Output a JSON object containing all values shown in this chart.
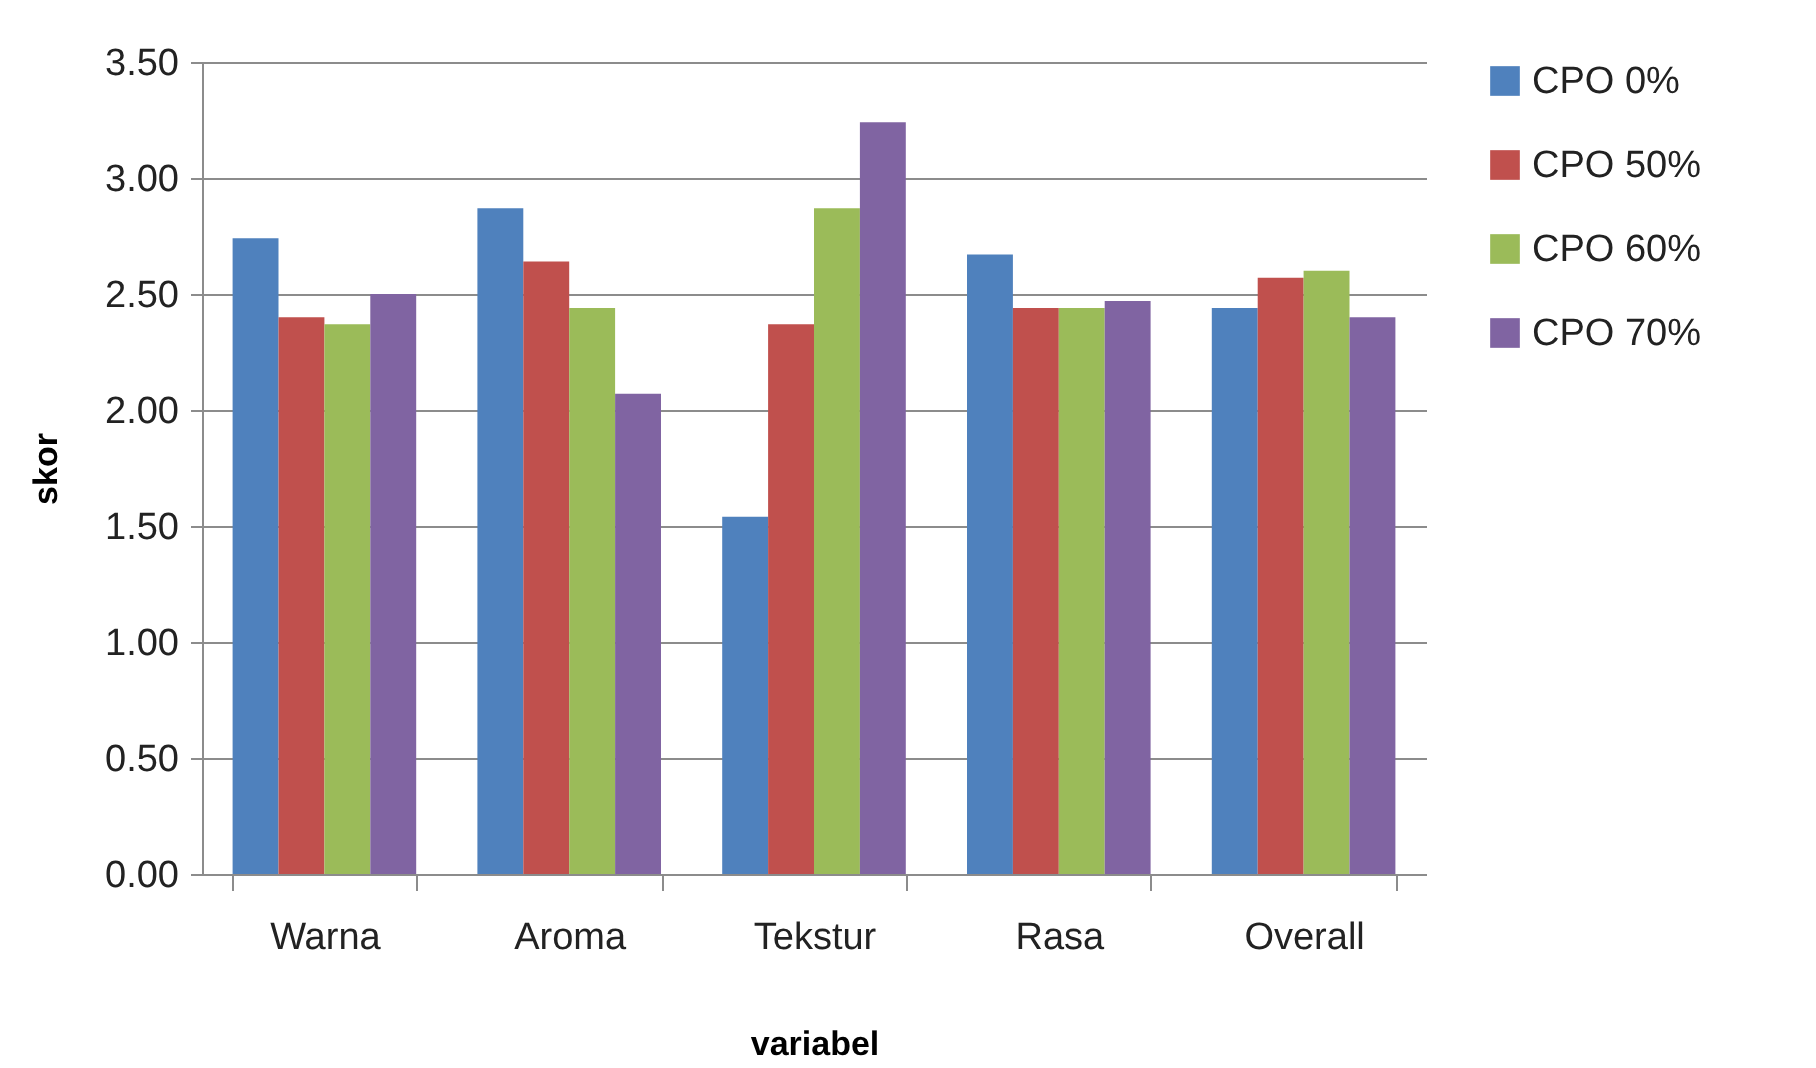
{
  "chart_data": {
    "type": "bar",
    "xlabel": "variabel",
    "ylabel": "skor",
    "categories": [
      "Warna",
      "Aroma",
      "Tekstur",
      "Rasa",
      "Overall"
    ],
    "series": [
      {
        "name": "CPO 0%",
        "color": "#4f81bd",
        "values": [
          2.74,
          2.87,
          1.54,
          2.67,
          2.44
        ]
      },
      {
        "name": "CPO 50%",
        "color": "#c0504d",
        "values": [
          2.4,
          2.64,
          2.37,
          2.44,
          2.57
        ]
      },
      {
        "name": "CPO 60%",
        "color": "#9bbb59",
        "values": [
          2.37,
          2.44,
          2.87,
          2.44,
          2.6
        ]
      },
      {
        "name": "CPO 70%",
        "color": "#8064a2",
        "values": [
          2.5,
          2.07,
          3.24,
          2.47,
          2.4
        ]
      }
    ],
    "ylim": [
      0,
      3.5
    ],
    "yticks": [
      {
        "value": 0,
        "label": "0.00"
      },
      {
        "value": 0.5,
        "label": "0.50"
      },
      {
        "value": 1,
        "label": "1.00"
      },
      {
        "value": 1.5,
        "label": "1.50"
      },
      {
        "value": 2,
        "label": "2.00"
      },
      {
        "value": 2.5,
        "label": "2.50"
      },
      {
        "value": 3,
        "label": "3.00"
      },
      {
        "value": 3.5,
        "label": "3.50"
      }
    ],
    "grid": "y",
    "legend": "right"
  }
}
